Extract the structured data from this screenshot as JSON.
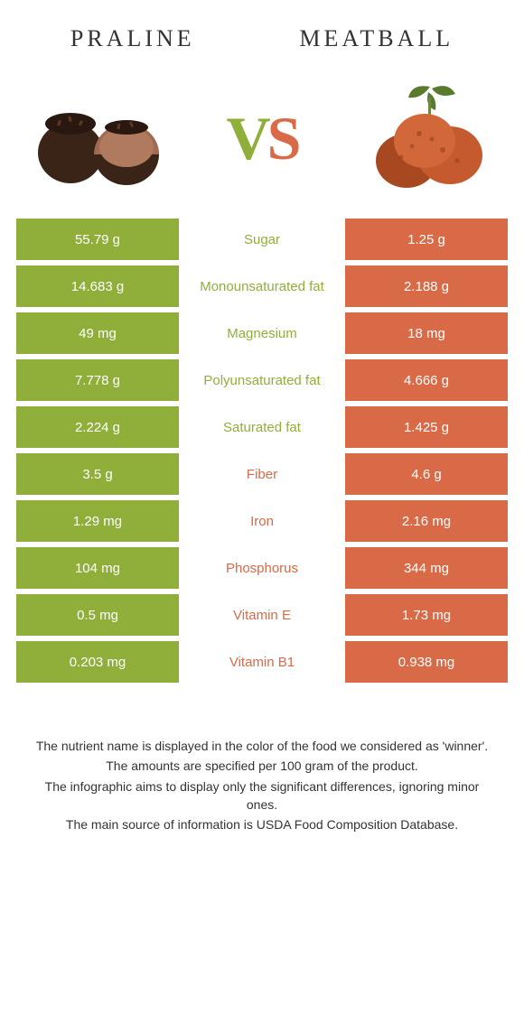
{
  "header": {
    "left_title": "Praline",
    "right_title": "Meatball"
  },
  "vs": {
    "v": "V",
    "s": "S"
  },
  "colors": {
    "green": "#8faf3a",
    "orange": "#d96a47",
    "bg": "#ffffff",
    "praline_dark": "#3a2418",
    "praline_fill": "#a06b50",
    "meatball_fill": "#c45a2e",
    "parsley": "#5a7a2e"
  },
  "rows": [
    {
      "left": "55.79 g",
      "mid": "Sugar",
      "right": "1.25 g",
      "winner": "left"
    },
    {
      "left": "14.683 g",
      "mid": "Monounsaturated fat",
      "right": "2.188 g",
      "winner": "left"
    },
    {
      "left": "49 mg",
      "mid": "Magnesium",
      "right": "18 mg",
      "winner": "left"
    },
    {
      "left": "7.778 g",
      "mid": "Polyunsaturated fat",
      "right": "4.666 g",
      "winner": "left"
    },
    {
      "left": "2.224 g",
      "mid": "Saturated fat",
      "right": "1.425 g",
      "winner": "left"
    },
    {
      "left": "3.5 g",
      "mid": "Fiber",
      "right": "4.6 g",
      "winner": "right"
    },
    {
      "left": "1.29 mg",
      "mid": "Iron",
      "right": "2.16 mg",
      "winner": "right"
    },
    {
      "left": "104 mg",
      "mid": "Phosphorus",
      "right": "344 mg",
      "winner": "right"
    },
    {
      "left": "0.5 mg",
      "mid": "Vitamin E",
      "right": "1.73 mg",
      "winner": "right"
    },
    {
      "left": "0.203 mg",
      "mid": "Vitamin B1",
      "right": "0.938 mg",
      "winner": "right"
    }
  ],
  "footer": {
    "line1": "The nutrient name is displayed in the color of the food we considered as 'winner'.",
    "line2": "The amounts are specified per 100 gram of the product.",
    "line3": "The infographic aims to display only the significant differences, ignoring minor ones.",
    "line4": "The main source of information is USDA Food Composition Database."
  }
}
